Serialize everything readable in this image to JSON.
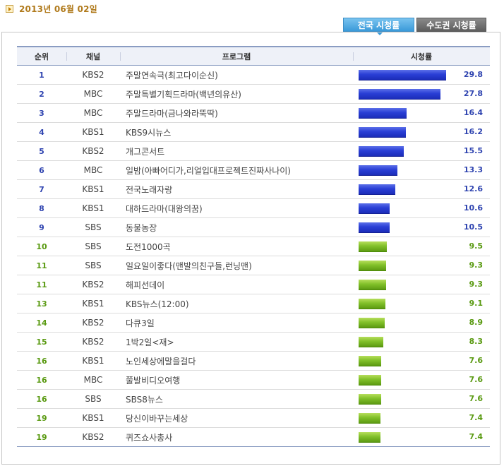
{
  "date": "2013년 06월 02일",
  "tabs": [
    {
      "label": "전국 시청률",
      "active": true
    },
    {
      "label": "수도권 시청률",
      "active": false
    }
  ],
  "columns": [
    "순위",
    "채널",
    "프로그램",
    "시청률"
  ],
  "rows": [
    {
      "rank": "1",
      "channel": "KBS2",
      "program": "주말연속극(최고다이순신)",
      "rating": "29.8"
    },
    {
      "rank": "2",
      "channel": "MBC",
      "program": "주말특별기획드라마(백년의유산)",
      "rating": "27.8"
    },
    {
      "rank": "3",
      "channel": "MBC",
      "program": "주말드라마(금나와라뚝딱)",
      "rating": "16.4"
    },
    {
      "rank": "4",
      "channel": "KBS1",
      "program": "KBS9시뉴스",
      "rating": "16.2"
    },
    {
      "rank": "5",
      "channel": "KBS2",
      "program": "개그콘서트",
      "rating": "15.5"
    },
    {
      "rank": "6",
      "channel": "MBC",
      "program": "일밤(아빠어디가,리얼입대프로젝트진짜사나이)",
      "rating": "13.3"
    },
    {
      "rank": "7",
      "channel": "KBS1",
      "program": "전국노래자랑",
      "rating": "12.6"
    },
    {
      "rank": "8",
      "channel": "KBS1",
      "program": "대하드라마(대왕의꿈)",
      "rating": "10.6"
    },
    {
      "rank": "9",
      "channel": "SBS",
      "program": "동물농장",
      "rating": "10.5"
    },
    {
      "rank": "10",
      "channel": "SBS",
      "program": "도전1000곡",
      "rating": "9.5"
    },
    {
      "rank": "11",
      "channel": "SBS",
      "program": "일요일이좋다(맨발의친구들,런닝맨)",
      "rating": "9.3"
    },
    {
      "rank": "11",
      "channel": "KBS2",
      "program": "해피선데이",
      "rating": "9.3"
    },
    {
      "rank": "13",
      "channel": "KBS1",
      "program": "KBS뉴스(12:00)",
      "rating": "9.1"
    },
    {
      "rank": "14",
      "channel": "KBS2",
      "program": "다큐3일",
      "rating": "8.9"
    },
    {
      "rank": "15",
      "channel": "KBS2",
      "program": "1박2일<재>",
      "rating": "8.3"
    },
    {
      "rank": "16",
      "channel": "KBS1",
      "program": "노인세상에말을걸다",
      "rating": "7.6"
    },
    {
      "rank": "16",
      "channel": "MBC",
      "program": "쭐발비디오여행",
      "rating": "7.6"
    },
    {
      "rank": "16",
      "channel": "SBS",
      "program": "SBS8뉴스",
      "rating": "7.6"
    },
    {
      "rank": "19",
      "channel": "KBS1",
      "program": "당신이바꾸는세상",
      "rating": "7.4"
    },
    {
      "rank": "19",
      "channel": "KBS2",
      "program": "퀴즈쇼사총사",
      "rating": "7.4"
    }
  ],
  "colors": {
    "top_bar": "#2a3fd6",
    "rest_bar": "#82c12a",
    "date": "#b07a1c"
  }
}
